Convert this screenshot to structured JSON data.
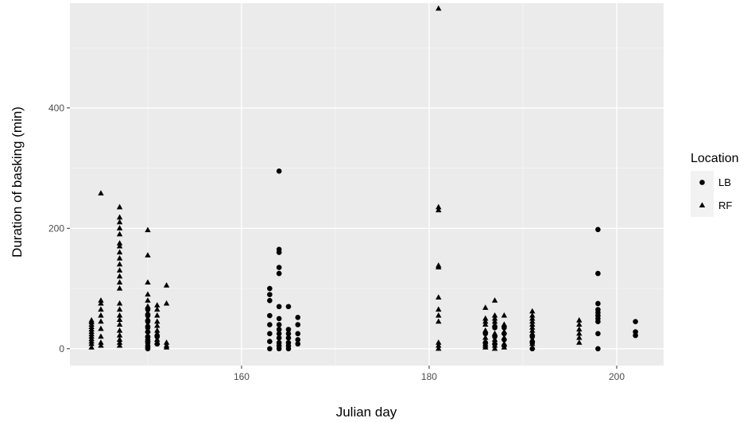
{
  "chart_data": {
    "type": "scatter",
    "title": "",
    "xlabel": "Julian day",
    "ylabel": "Duration of basking (min)",
    "xlim": [
      141.7,
      205
    ],
    "ylim": [
      -28,
      574
    ],
    "x_ticks": [
      160,
      180,
      200
    ],
    "x_tick_labels": [
      "160",
      "180",
      "200"
    ],
    "y_ticks": [
      0,
      200,
      400
    ],
    "y_tick_labels": [
      "0",
      "200",
      "400"
    ],
    "grid": true,
    "legend": {
      "title": "Location",
      "position": "right",
      "entries": [
        {
          "label": "LB",
          "shape": "circle"
        },
        {
          "label": "RF",
          "shape": "triangle"
        }
      ]
    },
    "colors": {
      "panel": "#ebebeb",
      "grid_major": "#ffffff",
      "grid_minor": "#f5f5f5",
      "point": "#000000",
      "legend_key_bg": "#f2f2f2"
    },
    "series": [
      {
        "name": "LB",
        "shape": "circle",
        "points": [
          [
            150,
            0
          ],
          [
            150,
            5
          ],
          [
            150,
            10
          ],
          [
            150,
            15
          ],
          [
            150,
            20
          ],
          [
            150,
            28
          ],
          [
            150,
            35
          ],
          [
            150,
            45
          ],
          [
            150,
            55
          ],
          [
            150,
            65
          ],
          [
            151,
            8
          ],
          [
            151,
            20
          ],
          [
            163,
            0
          ],
          [
            163,
            12
          ],
          [
            163,
            25
          ],
          [
            163,
            40
          ],
          [
            163,
            55
          ],
          [
            163,
            80
          ],
          [
            163,
            90
          ],
          [
            163,
            100
          ],
          [
            164,
            0
          ],
          [
            164,
            5
          ],
          [
            164,
            10
          ],
          [
            164,
            18
          ],
          [
            164,
            25
          ],
          [
            164,
            32
          ],
          [
            164,
            40
          ],
          [
            164,
            50
          ],
          [
            164,
            70
          ],
          [
            164,
            125
          ],
          [
            164,
            135
          ],
          [
            164,
            160
          ],
          [
            164,
            165
          ],
          [
            164,
            295
          ],
          [
            165,
            0
          ],
          [
            165,
            5
          ],
          [
            165,
            10
          ],
          [
            165,
            18
          ],
          [
            165,
            25
          ],
          [
            165,
            32
          ],
          [
            165,
            70
          ],
          [
            166,
            8
          ],
          [
            166,
            15
          ],
          [
            166,
            25
          ],
          [
            166,
            40
          ],
          [
            166,
            52
          ],
          [
            186,
            10
          ],
          [
            186,
            25
          ],
          [
            187,
            8
          ],
          [
            187,
            20
          ],
          [
            187,
            35
          ],
          [
            188,
            5
          ],
          [
            188,
            15
          ],
          [
            188,
            25
          ],
          [
            188,
            35
          ],
          [
            191,
            0
          ],
          [
            191,
            10
          ],
          [
            191,
            20
          ],
          [
            198,
            0
          ],
          [
            198,
            25
          ],
          [
            198,
            45
          ],
          [
            198,
            50
          ],
          [
            198,
            55
          ],
          [
            198,
            60
          ],
          [
            198,
            65
          ],
          [
            198,
            75
          ],
          [
            198,
            125
          ],
          [
            198,
            198
          ],
          [
            202,
            22
          ],
          [
            202,
            28
          ],
          [
            202,
            45
          ]
        ]
      },
      {
        "name": "RF",
        "shape": "triangle",
        "points": [
          [
            144,
            2
          ],
          [
            144,
            8
          ],
          [
            144,
            12
          ],
          [
            144,
            16
          ],
          [
            144,
            20
          ],
          [
            144,
            24
          ],
          [
            144,
            28
          ],
          [
            144,
            32
          ],
          [
            144,
            36
          ],
          [
            144,
            40
          ],
          [
            144,
            44
          ],
          [
            144,
            47
          ],
          [
            145,
            5
          ],
          [
            145,
            10
          ],
          [
            145,
            20
          ],
          [
            145,
            33
          ],
          [
            145,
            45
          ],
          [
            145,
            55
          ],
          [
            145,
            65
          ],
          [
            145,
            75
          ],
          [
            145,
            80
          ],
          [
            145,
            258
          ],
          [
            147,
            5
          ],
          [
            147,
            10
          ],
          [
            147,
            15
          ],
          [
            147,
            22
          ],
          [
            147,
            30
          ],
          [
            147,
            40
          ],
          [
            147,
            48
          ],
          [
            147,
            55
          ],
          [
            147,
            65
          ],
          [
            147,
            75
          ],
          [
            147,
            100
          ],
          [
            147,
            110
          ],
          [
            147,
            120
          ],
          [
            147,
            130
          ],
          [
            147,
            140
          ],
          [
            147,
            150
          ],
          [
            147,
            160
          ],
          [
            147,
            170
          ],
          [
            147,
            175
          ],
          [
            147,
            190
          ],
          [
            147,
            200
          ],
          [
            147,
            210
          ],
          [
            147,
            218
          ],
          [
            147,
            235
          ],
          [
            150,
            5
          ],
          [
            150,
            15
          ],
          [
            150,
            22
          ],
          [
            150,
            30
          ],
          [
            150,
            40
          ],
          [
            150,
            50
          ],
          [
            150,
            60
          ],
          [
            150,
            70
          ],
          [
            150,
            80
          ],
          [
            150,
            90
          ],
          [
            150,
            110
          ],
          [
            150,
            155
          ],
          [
            150,
            197
          ],
          [
            151,
            10
          ],
          [
            151,
            15
          ],
          [
            151,
            25
          ],
          [
            151,
            30
          ],
          [
            151,
            38
          ],
          [
            151,
            45
          ],
          [
            151,
            55
          ],
          [
            151,
            65
          ],
          [
            151,
            72
          ],
          [
            152,
            2
          ],
          [
            152,
            5
          ],
          [
            152,
            10
          ],
          [
            152,
            75
          ],
          [
            152,
            105
          ],
          [
            181,
            0
          ],
          [
            181,
            5
          ],
          [
            181,
            10
          ],
          [
            181,
            45
          ],
          [
            181,
            55
          ],
          [
            181,
            65
          ],
          [
            181,
            85
          ],
          [
            181,
            135
          ],
          [
            181,
            138
          ],
          [
            181,
            230
          ],
          [
            181,
            235
          ],
          [
            181,
            565
          ],
          [
            186,
            2
          ],
          [
            186,
            5
          ],
          [
            186,
            8
          ],
          [
            186,
            12
          ],
          [
            186,
            18
          ],
          [
            186,
            30
          ],
          [
            186,
            40
          ],
          [
            186,
            45
          ],
          [
            186,
            50
          ],
          [
            186,
            68
          ],
          [
            187,
            0
          ],
          [
            187,
            5
          ],
          [
            187,
            10
          ],
          [
            187,
            15
          ],
          [
            187,
            25
          ],
          [
            187,
            40
          ],
          [
            187,
            45
          ],
          [
            187,
            50
          ],
          [
            187,
            55
          ],
          [
            187,
            80
          ],
          [
            188,
            2
          ],
          [
            188,
            8
          ],
          [
            188,
            18
          ],
          [
            188,
            28
          ],
          [
            188,
            40
          ],
          [
            188,
            55
          ],
          [
            191,
            2
          ],
          [
            191,
            8
          ],
          [
            191,
            15
          ],
          [
            191,
            25
          ],
          [
            191,
            30
          ],
          [
            191,
            35
          ],
          [
            191,
            40
          ],
          [
            191,
            45
          ],
          [
            191,
            50
          ],
          [
            191,
            55
          ],
          [
            191,
            62
          ],
          [
            196,
            10
          ],
          [
            196,
            18
          ],
          [
            196,
            25
          ],
          [
            196,
            32
          ],
          [
            196,
            40
          ],
          [
            196,
            47
          ]
        ]
      }
    ]
  }
}
